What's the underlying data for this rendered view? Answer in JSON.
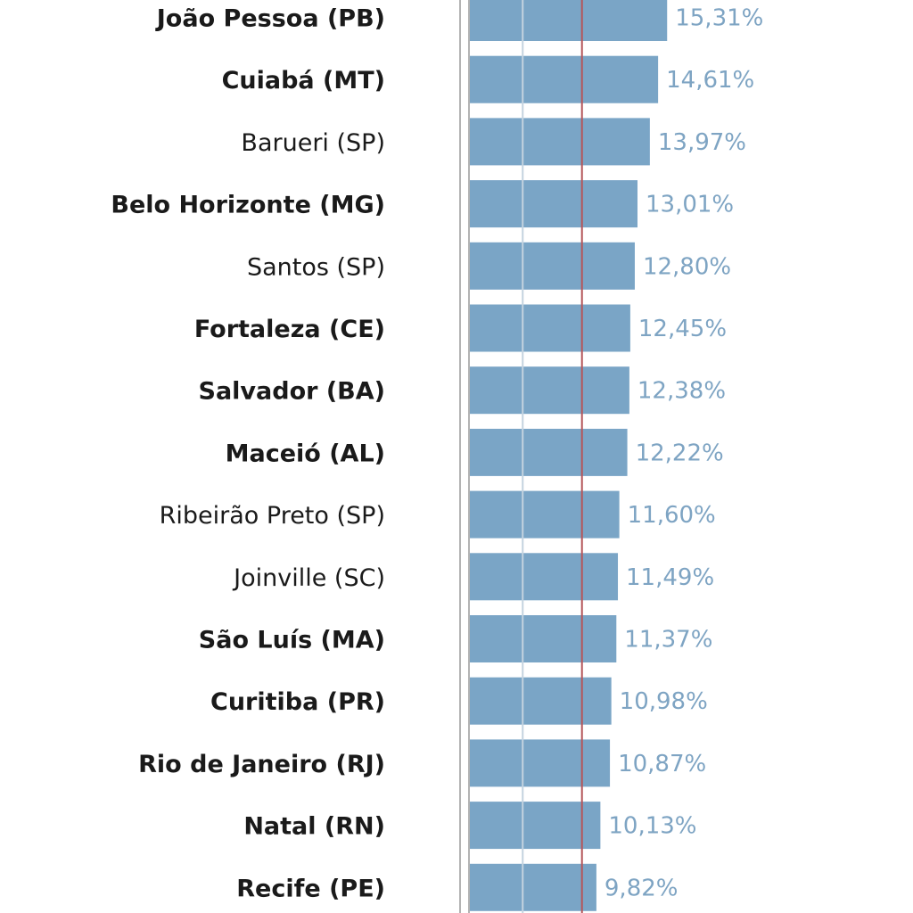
{
  "colors": {
    "bar": "#7aa5c6",
    "value_label": "#7ea4c3",
    "reference_line": "#b5565a",
    "gridline": "#c4d3df",
    "axis": "#9a9a9a",
    "category_label": "#1a1a1a"
  },
  "chart_data": {
    "type": "bar",
    "orientation": "horizontal",
    "title": "",
    "xlabel": "",
    "ylabel": "",
    "xlim": [
      0,
      17.3
    ],
    "reference_line_value": 8.7,
    "gridline_values": [
      4.1
    ],
    "value_suffix": "%",
    "decimal_separator": ",",
    "categories": [
      "João Pessoa (PB)",
      "Cuiabá (MT)",
      "Barueri (SP)",
      "Belo Horizonte (MG)",
      "Santos (SP)",
      "Fortaleza (CE)",
      "Salvador (BA)",
      "Maceió (AL)",
      "Ribeirão Preto (SP)",
      "Joinville (SC)",
      "São Luís (MA)",
      "Curitiba (PR)",
      "Rio de Janeiro (RJ)",
      "Natal (RN)",
      "Recife (PE)"
    ],
    "bold": [
      true,
      true,
      false,
      true,
      false,
      true,
      true,
      true,
      false,
      false,
      true,
      true,
      true,
      true,
      true
    ],
    "values": [
      15.31,
      14.61,
      13.97,
      13.01,
      12.8,
      12.45,
      12.38,
      12.22,
      11.6,
      11.49,
      11.37,
      10.98,
      10.87,
      10.13,
      9.82
    ],
    "value_labels": [
      "15,31%",
      "14,61%",
      "13,97%",
      "13,01%",
      "12,80%",
      "12,45%",
      "12,38%",
      "12,22%",
      "11,60%",
      "11,49%",
      "11,37%",
      "10,98%",
      "10,87%",
      "10,13%",
      "9,82%"
    ]
  }
}
